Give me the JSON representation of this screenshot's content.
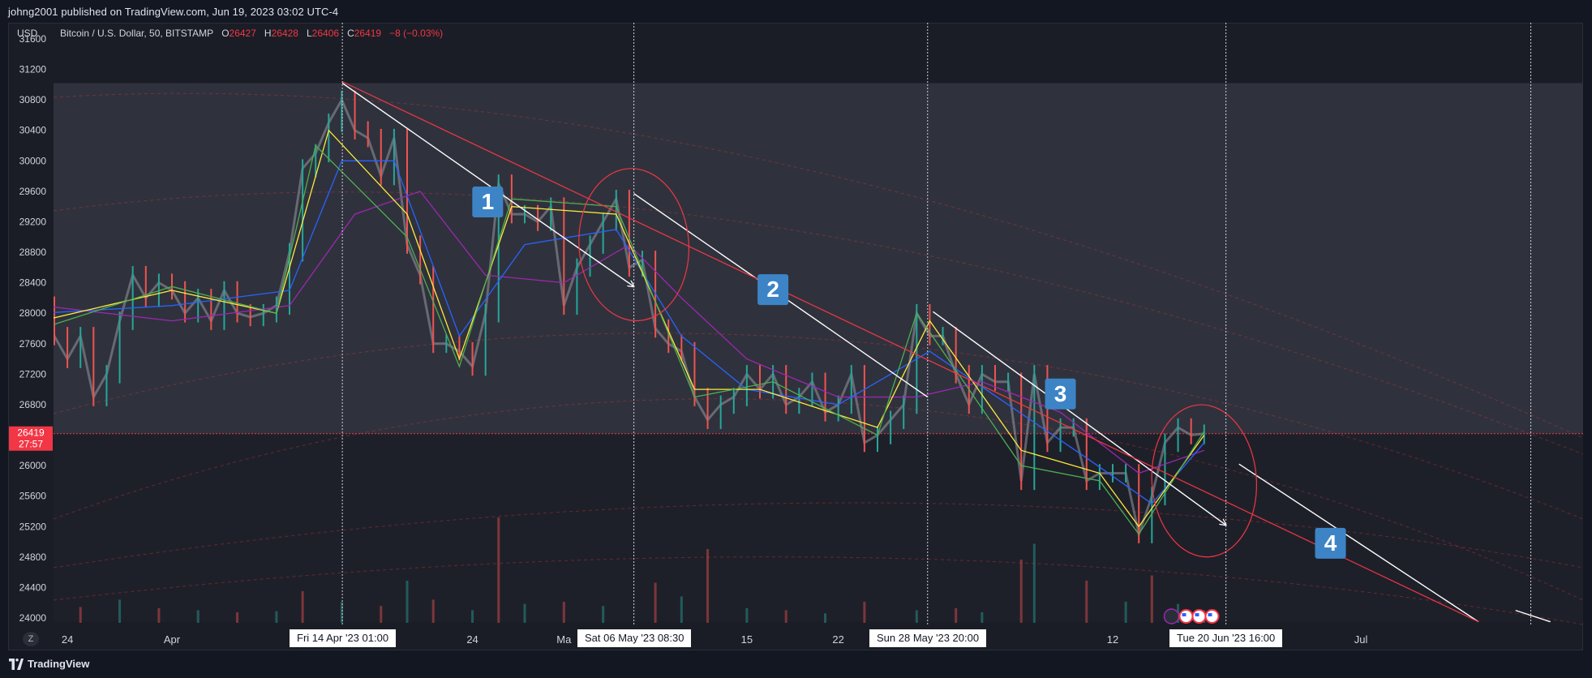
{
  "header": {
    "publish_text": "johng2001 published on TradingView.com, Jun 19, 2023 03:02 UTC-4"
  },
  "footer": {
    "brand": "TradingView"
  },
  "symbol": {
    "name": "Bitcoin / U.S. Dollar, 50, BITSTAMP",
    "o_label": "O",
    "o": "26427",
    "h_label": "H",
    "h": "26428",
    "l_label": "L",
    "l": "26406",
    "c_label": "C",
    "c": "26419",
    "change": "−8 (−0.03%)"
  },
  "currency": "USD",
  "toggle": "Z",
  "price_badge": {
    "price": "26419",
    "countdown": "27:57"
  },
  "colors": {
    "background": "#131722",
    "upper_zone": "#2f323c",
    "lower_zone": "#1e2029",
    "red": "#f23645",
    "white": "#ffffff",
    "blue_label": "#3d84c6",
    "ema_purple": "#9c27b0",
    "ema_blue": "#2962ff",
    "ema_yellow": "#ffeb3b",
    "ema_green": "#4caf50"
  },
  "chart_data": {
    "type": "line",
    "ylim": [
      23950,
      31750
    ],
    "y_ticks": [
      24000,
      24400,
      24800,
      25200,
      25600,
      26000,
      26800,
      27200,
      27600,
      28000,
      28400,
      28800,
      29200,
      29600,
      30000,
      30400,
      30800,
      31200,
      31600
    ],
    "x_ticks": [
      {
        "label": "24",
        "t": "2023-03-24"
      },
      {
        "label": "Apr",
        "t": "2023-04-01"
      },
      {
        "label": "24",
        "t": "2023-04-24"
      },
      {
        "label": "Ma",
        "t": "2023-05-01"
      },
      {
        "label": "15",
        "t": "2023-05-15"
      },
      {
        "label": "22",
        "t": "2023-05-22"
      },
      {
        "label": "12",
        "t": "2023-06-12"
      },
      {
        "label": "Jul",
        "t": "2023-07-01"
      }
    ],
    "x_flags": [
      {
        "label": "Fri 14 Apr '23   01:00",
        "t": "2023-04-14T01:00"
      },
      {
        "label": "Sat 06 May '23   08:30",
        "t": "2023-05-06T08:30"
      },
      {
        "label": "Sun 28 May '23   20:00",
        "t": "2023-05-28T20:00"
      },
      {
        "label": "Tue 20 Jun '23   16:00",
        "t": "2023-06-20T16:00"
      }
    ],
    "price_series": {
      "name": "",
      "points": [
        [
          "2023-03-22",
          28100
        ],
        [
          "2023-03-23",
          27700
        ],
        [
          "2023-03-24",
          27400
        ],
        [
          "2023-03-25",
          27700
        ],
        [
          "2023-03-26",
          26900
        ],
        [
          "2023-03-27",
          27200
        ],
        [
          "2023-03-28",
          27900
        ],
        [
          "2023-03-29",
          28500
        ],
        [
          "2023-03-30",
          28200
        ],
        [
          "2023-03-31",
          28400
        ],
        [
          "2023-04-01",
          28300
        ],
        [
          "2023-04-02",
          28000
        ],
        [
          "2023-04-03",
          28200
        ],
        [
          "2023-04-04",
          27900
        ],
        [
          "2023-04-05",
          28300
        ],
        [
          "2023-04-06",
          28000
        ],
        [
          "2023-04-07",
          27950
        ],
        [
          "2023-04-08",
          28000
        ],
        [
          "2023-04-09",
          28100
        ],
        [
          "2023-04-10",
          28800
        ],
        [
          "2023-04-11",
          29900
        ],
        [
          "2023-04-12",
          30100
        ],
        [
          "2023-04-13",
          30500
        ],
        [
          "2023-04-14",
          30800
        ],
        [
          "2023-04-15",
          30400
        ],
        [
          "2023-04-16",
          30300
        ],
        [
          "2023-04-17",
          29800
        ],
        [
          "2023-04-18",
          30300
        ],
        [
          "2023-04-19",
          28900
        ],
        [
          "2023-04-20",
          28500
        ],
        [
          "2023-04-21",
          27600
        ],
        [
          "2023-04-22",
          27600
        ],
        [
          "2023-04-23",
          27500
        ],
        [
          "2023-04-24",
          27300
        ],
        [
          "2023-04-25",
          28000
        ],
        [
          "2023-04-26",
          29700
        ],
        [
          "2023-04-27",
          29300
        ],
        [
          "2023-04-28",
          29300
        ],
        [
          "2023-04-29",
          29200
        ],
        [
          "2023-04-30",
          29400
        ],
        [
          "2023-05-01",
          28100
        ],
        [
          "2023-05-02",
          28600
        ],
        [
          "2023-05-03",
          28900
        ],
        [
          "2023-05-04",
          29200
        ],
        [
          "2023-05-05",
          29500
        ],
        [
          "2023-05-06",
          28600
        ],
        [
          "2023-05-07",
          28700
        ],
        [
          "2023-05-08",
          27800
        ],
        [
          "2023-05-09",
          27600
        ],
        [
          "2023-05-10",
          27500
        ],
        [
          "2023-05-11",
          26900
        ],
        [
          "2023-05-12",
          26600
        ],
        [
          "2023-05-13",
          26800
        ],
        [
          "2023-05-14",
          26900
        ],
        [
          "2023-05-15",
          27200
        ],
        [
          "2023-05-16",
          27000
        ],
        [
          "2023-05-17",
          27200
        ],
        [
          "2023-05-18",
          26800
        ],
        [
          "2023-05-19",
          26900
        ],
        [
          "2023-05-20",
          27100
        ],
        [
          "2023-05-21",
          26700
        ],
        [
          "2023-05-22",
          26800
        ],
        [
          "2023-05-23",
          27200
        ],
        [
          "2023-05-24",
          26300
        ],
        [
          "2023-05-25",
          26400
        ],
        [
          "2023-05-26",
          26600
        ],
        [
          "2023-05-27",
          26800
        ],
        [
          "2023-05-28",
          28000
        ],
        [
          "2023-05-29",
          27700
        ],
        [
          "2023-05-30",
          27700
        ],
        [
          "2023-05-31",
          27200
        ],
        [
          "2023-06-01",
          26800
        ],
        [
          "2023-06-02",
          27200
        ],
        [
          "2023-06-03",
          27100
        ],
        [
          "2023-06-04",
          27100
        ],
        [
          "2023-06-05",
          25800
        ],
        [
          "2023-06-06",
          27200
        ],
        [
          "2023-06-07",
          26300
        ],
        [
          "2023-06-08",
          26500
        ],
        [
          "2023-06-09",
          26500
        ],
        [
          "2023-06-10",
          25800
        ],
        [
          "2023-06-11",
          25900
        ],
        [
          "2023-06-12",
          25900
        ],
        [
          "2023-06-13",
          25900
        ],
        [
          "2023-06-14",
          25100
        ],
        [
          "2023-06-15",
          25600
        ],
        [
          "2023-06-16",
          26300
        ],
        [
          "2023-06-17",
          26500
        ],
        [
          "2023-06-18",
          26400
        ],
        [
          "2023-06-19",
          26419
        ]
      ]
    },
    "volume_series": {
      "name": "",
      "max_volume": 100,
      "points": [
        [
          "2023-03-22",
          18
        ],
        [
          "2023-03-25",
          15
        ],
        [
          "2023-03-28",
          22
        ],
        [
          "2023-03-31",
          14
        ],
        [
          "2023-04-03",
          12
        ],
        [
          "2023-04-06",
          10
        ],
        [
          "2023-04-09",
          11
        ],
        [
          "2023-04-11",
          30
        ],
        [
          "2023-04-14",
          20
        ],
        [
          "2023-04-17",
          16
        ],
        [
          "2023-04-19",
          40
        ],
        [
          "2023-04-21",
          22
        ],
        [
          "2023-04-24",
          12
        ],
        [
          "2023-04-26",
          100
        ],
        [
          "2023-04-28",
          18
        ],
        [
          "2023-05-01",
          20
        ],
        [
          "2023-05-04",
          16
        ],
        [
          "2023-05-08",
          38
        ],
        [
          "2023-05-10",
          25
        ],
        [
          "2023-05-12",
          70
        ],
        [
          "2023-05-15",
          14
        ],
        [
          "2023-05-18",
          12
        ],
        [
          "2023-05-21",
          9
        ],
        [
          "2023-05-24",
          20
        ],
        [
          "2023-05-28",
          12
        ],
        [
          "2023-05-31",
          14
        ],
        [
          "2023-06-02",
          10
        ],
        [
          "2023-06-05",
          60
        ],
        [
          "2023-06-06",
          75
        ],
        [
          "2023-06-10",
          40
        ],
        [
          "2023-06-13",
          20
        ],
        [
          "2023-06-15",
          45
        ],
        [
          "2023-06-17",
          18
        ],
        [
          "2023-06-19",
          12
        ]
      ]
    },
    "ema_series": [
      {
        "name": "",
        "color": "#9c27b0",
        "points": [
          [
            "2023-03-22",
            28100
          ],
          [
            "2023-04-01",
            27900
          ],
          [
            "2023-04-10",
            28100
          ],
          [
            "2023-04-15",
            29300
          ],
          [
            "2023-04-20",
            29600
          ],
          [
            "2023-04-25",
            28500
          ],
          [
            "2023-05-01",
            28400
          ],
          [
            "2023-05-06",
            28900
          ],
          [
            "2023-05-10",
            28200
          ],
          [
            "2023-05-15",
            27400
          ],
          [
            "2023-05-22",
            26900
          ],
          [
            "2023-05-28",
            26900
          ],
          [
            "2023-06-02",
            27100
          ],
          [
            "2023-06-08",
            26700
          ],
          [
            "2023-06-14",
            25900
          ],
          [
            "2023-06-19",
            26200
          ]
        ]
      },
      {
        "name": "",
        "color": "#2962ff",
        "points": [
          [
            "2023-03-22",
            28000
          ],
          [
            "2023-04-01",
            28100
          ],
          [
            "2023-04-10",
            28300
          ],
          [
            "2023-04-14",
            30000
          ],
          [
            "2023-04-18",
            30000
          ],
          [
            "2023-04-23",
            27700
          ],
          [
            "2023-04-28",
            28900
          ],
          [
            "2023-05-05",
            29100
          ],
          [
            "2023-05-10",
            27700
          ],
          [
            "2023-05-15",
            27000
          ],
          [
            "2023-05-22",
            26800
          ],
          [
            "2023-05-29",
            27500
          ],
          [
            "2023-06-04",
            26800
          ],
          [
            "2023-06-10",
            26100
          ],
          [
            "2023-06-15",
            25500
          ],
          [
            "2023-06-19",
            26300
          ]
        ]
      },
      {
        "name": "",
        "color": "#ffeb3b",
        "points": [
          [
            "2023-03-22",
            27900
          ],
          [
            "2023-04-01",
            28300
          ],
          [
            "2023-04-09",
            28000
          ],
          [
            "2023-04-13",
            30400
          ],
          [
            "2023-04-19",
            29300
          ],
          [
            "2023-04-23",
            27400
          ],
          [
            "2023-04-27",
            29400
          ],
          [
            "2023-05-05",
            29300
          ],
          [
            "2023-05-11",
            27000
          ],
          [
            "2023-05-16",
            27000
          ],
          [
            "2023-05-25",
            26500
          ],
          [
            "2023-05-29",
            27900
          ],
          [
            "2023-06-05",
            26200
          ],
          [
            "2023-06-11",
            25900
          ],
          [
            "2023-06-14",
            25200
          ],
          [
            "2023-06-19",
            26400
          ]
        ]
      },
      {
        "name": "",
        "color": "#4caf50",
        "points": [
          [
            "2023-03-22",
            27800
          ],
          [
            "2023-04-01",
            28350
          ],
          [
            "2023-04-09",
            28000
          ],
          [
            "2023-04-12",
            30200
          ],
          [
            "2023-04-19",
            29000
          ],
          [
            "2023-04-23",
            27300
          ],
          [
            "2023-04-27",
            29500
          ],
          [
            "2023-05-05",
            29400
          ],
          [
            "2023-05-11",
            26900
          ],
          [
            "2023-05-17",
            27100
          ],
          [
            "2023-05-25",
            26400
          ],
          [
            "2023-05-28",
            28000
          ],
          [
            "2023-06-05",
            26000
          ],
          [
            "2023-06-11",
            25800
          ],
          [
            "2023-06-14",
            25100
          ],
          [
            "2023-06-19",
            26450
          ]
        ]
      }
    ],
    "current_price": 26419,
    "zones": [
      {
        "kind": "upper",
        "from": 26419,
        "to": 31020
      },
      {
        "kind": "lower",
        "from": 23950,
        "to": 26419
      }
    ],
    "trendlines": [
      {
        "color": "#ffffff",
        "from": [
          "2023-04-14T01:00",
          31020
        ],
        "to": [
          "2023-05-06T08:30",
          28350
        ],
        "arrow": true
      },
      {
        "color": "#ffffff",
        "from": [
          "2023-05-06T08:30",
          29570
        ],
        "to": [
          "2023-05-28T20:00",
          26900
        ],
        "arrow": false
      },
      {
        "color": "#ffffff",
        "from": [
          "2023-05-29T06:00",
          28020
        ],
        "to": [
          "2023-06-20T16:00",
          25220
        ],
        "arrow": true
      },
      {
        "color": "#ffffff",
        "from": [
          "2023-06-21T16:00",
          26020
        ],
        "to": [
          "2023-07-10T00:00",
          23950
        ],
        "arrow": false
      },
      {
        "color": "#ffffff",
        "from": [
          "2023-07-12T20:00",
          24100
        ],
        "to": [
          "2023-07-15T12:00",
          23950
        ],
        "arrow": false
      },
      {
        "color": "#f23645",
        "from": [
          "2023-04-14T01:00",
          31040
        ],
        "to": [
          "2023-07-10T00:00",
          23950
        ],
        "arrow": false
      }
    ],
    "circles": [
      {
        "cx": "2023-05-06T08:30",
        "cy": 28900,
        "rx_days": 4.2,
        "ry_price": 1000
      },
      {
        "cx": "2023-06-19T00:00",
        "cy": 25800,
        "rx_days": 4.0,
        "ry_price": 1000
      }
    ],
    "labels": [
      {
        "text": "1",
        "t": "2023-04-25T04:00",
        "price": 29460
      },
      {
        "text": "2",
        "t": "2023-05-17T00:00",
        "price": 28310
      },
      {
        "text": "3",
        "t": "2023-06-08T00:00",
        "price": 26940
      },
      {
        "text": "4",
        "t": "2023-06-28T16:00",
        "price": 24980
      }
    ]
  }
}
